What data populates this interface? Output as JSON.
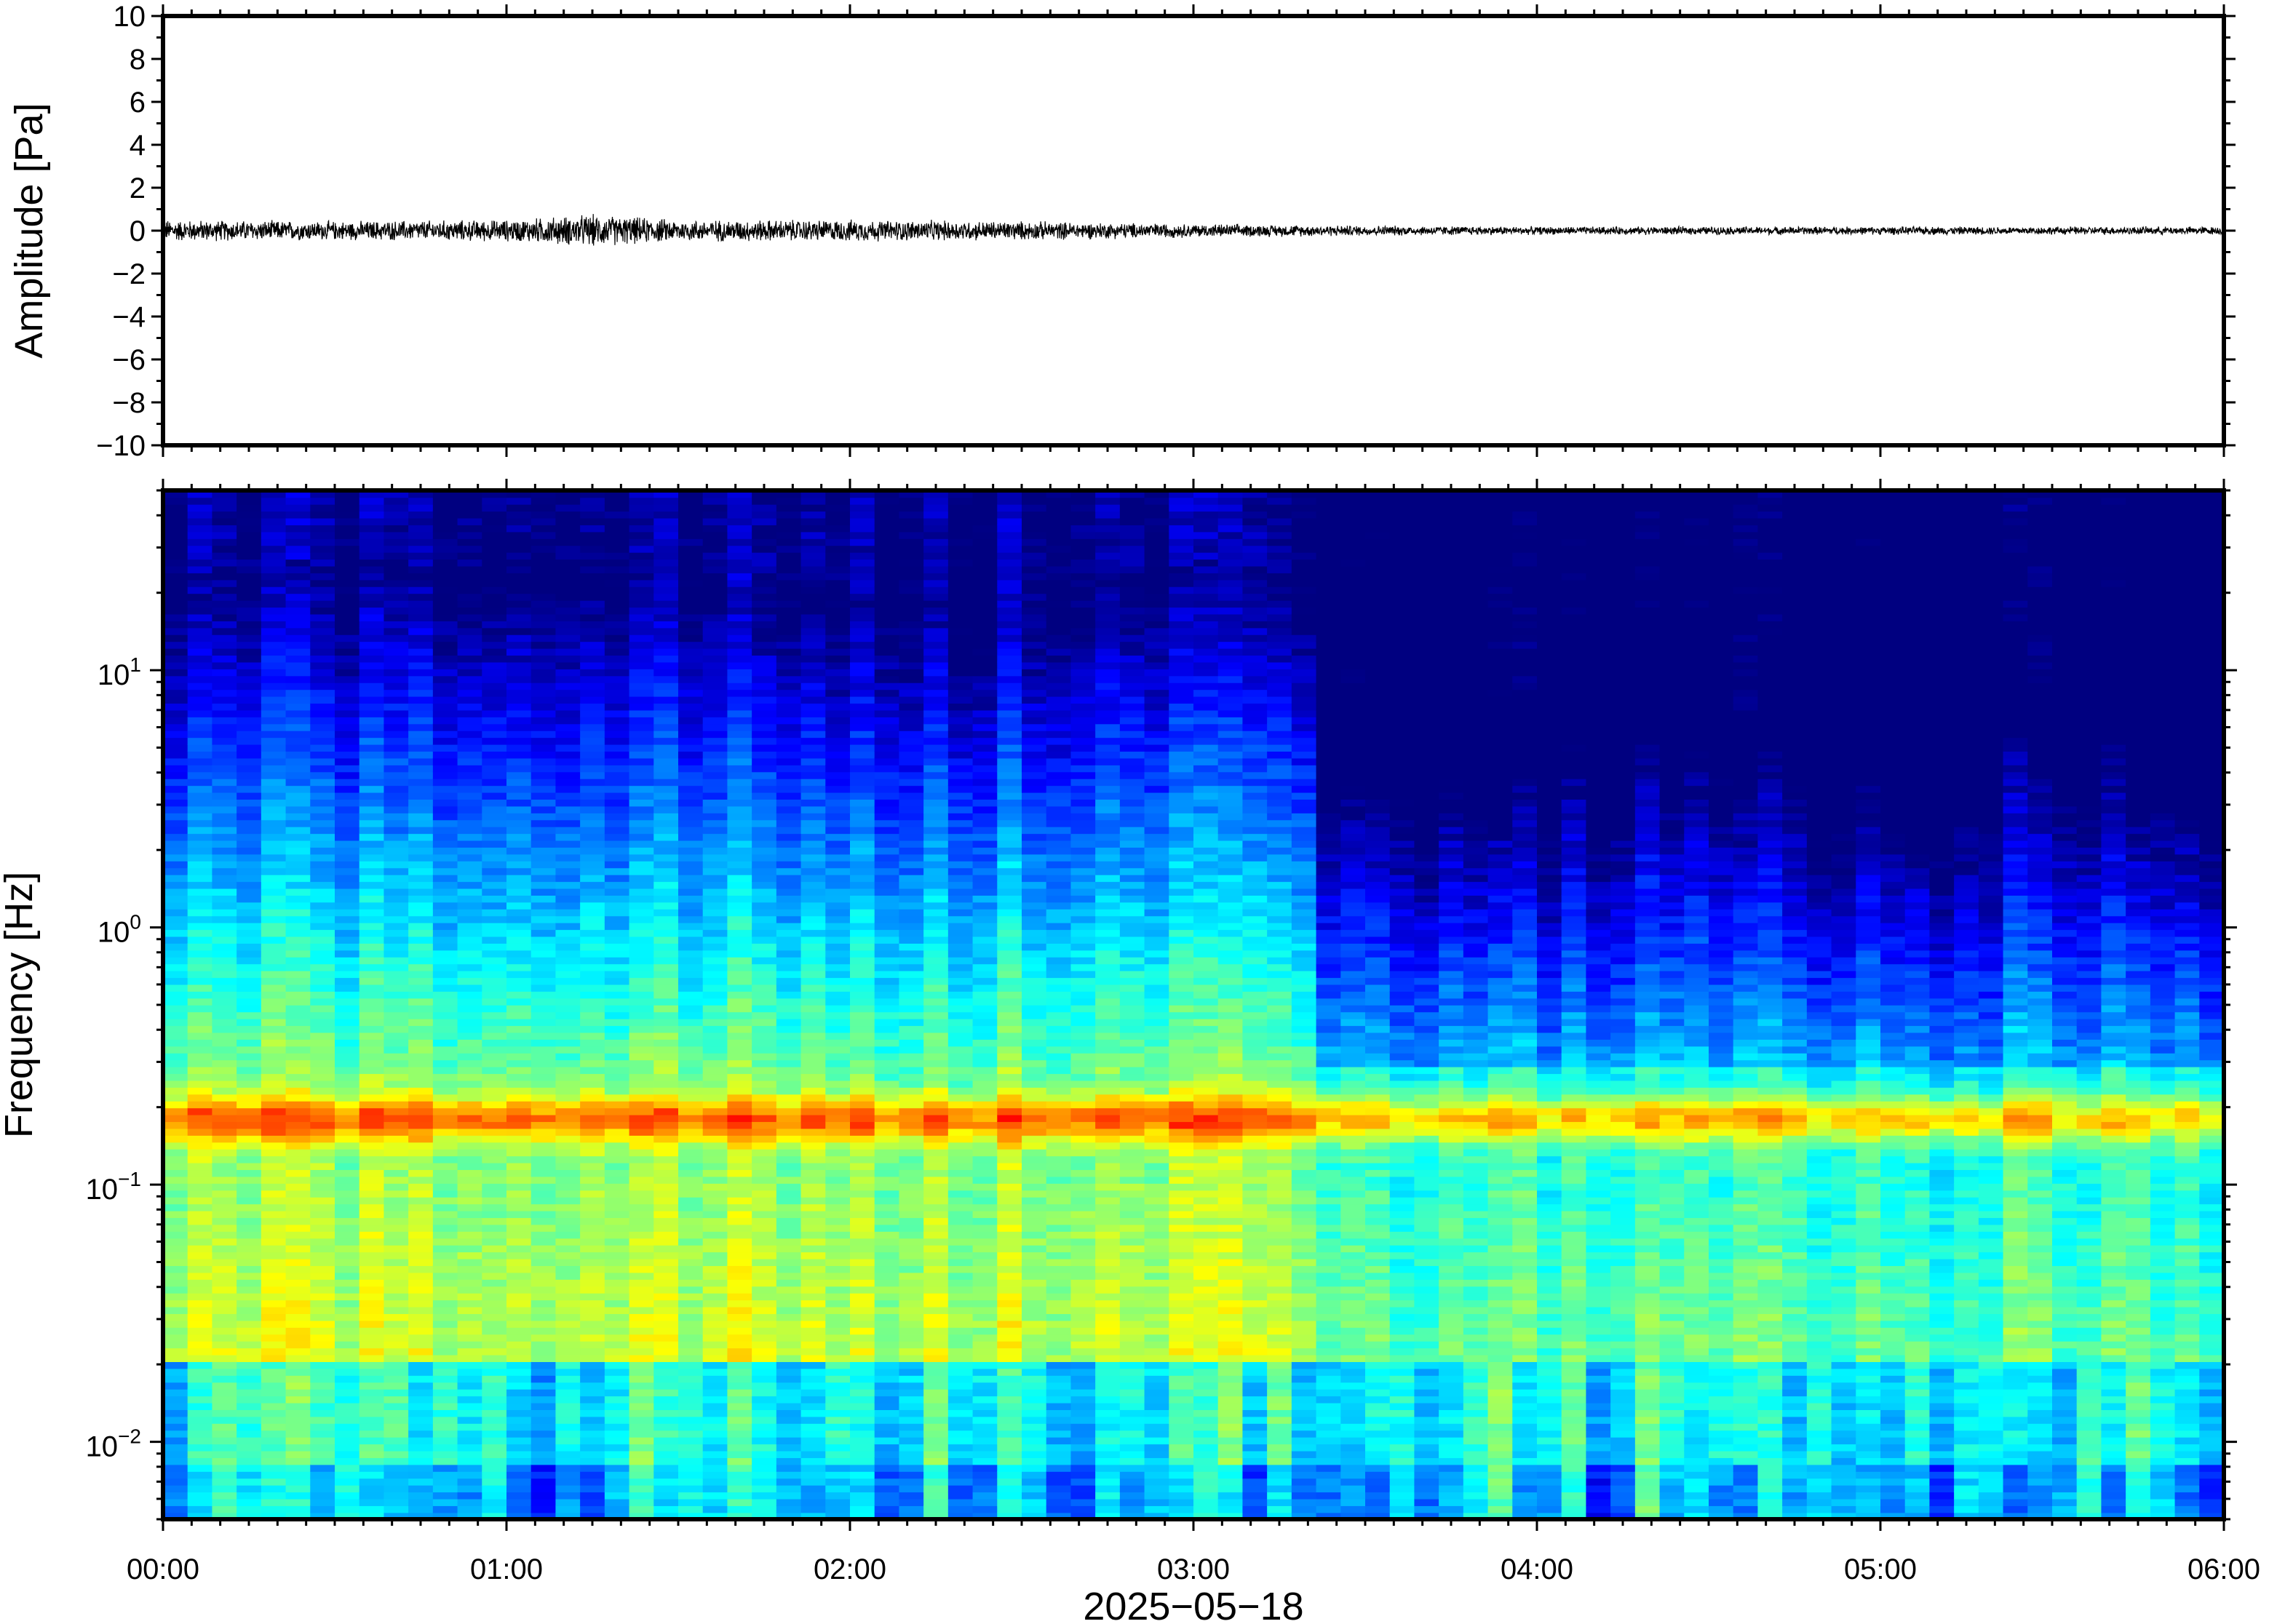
{
  "chart_data": [
    {
      "type": "line",
      "ylabel": "Amplitude [Pa]",
      "ylim": [
        -10,
        10
      ],
      "ytick_labels": [
        "10",
        "8",
        "6",
        "4",
        "2",
        "0",
        "−2",
        "−4",
        "−6",
        "−8",
        "−10"
      ],
      "ytick_values": [
        10,
        8,
        6,
        4,
        2,
        0,
        -2,
        -4,
        -6,
        -8,
        -10
      ],
      "xlim_hours": [
        0,
        6
      ],
      "series": [
        {
          "color": "#000000",
          "envelope_hours": [
            0.0,
            0.5,
            1.0,
            1.25,
            1.5,
            2.0,
            2.5,
            3.0,
            3.4,
            4.0,
            4.5,
            5.0,
            5.5,
            6.0
          ],
          "envelope_pa": [
            0.4,
            0.35,
            0.4,
            0.6,
            0.4,
            0.4,
            0.35,
            0.25,
            0.2,
            0.15,
            0.15,
            0.15,
            0.15,
            0.15
          ]
        }
      ]
    },
    {
      "type": "heatmap",
      "ylabel": "Frequency [Hz]",
      "yscale": "log",
      "ylim": [
        0.005,
        50
      ],
      "ytick_labels": [
        {
          "base": "10",
          "exp": "1",
          "value": 10
        },
        {
          "base": "10",
          "exp": "0",
          "value": 1
        },
        {
          "base": "10",
          "exp": "−1",
          "value": 0.1
        },
        {
          "base": "10",
          "exp": "−2",
          "value": 0.01
        }
      ],
      "colormap": "jet",
      "colors": {
        "low": "#000080",
        "mid": "#7fffa0",
        "high": "#ff8000"
      },
      "features": {
        "microseism_band_hz": [
          0.14,
          0.24
        ],
        "transition_hour": 3.37,
        "upper_cutoff_hz_before": 25,
        "upper_cutoff_hz_after": 6
      },
      "xlabel": "2025−05−18",
      "xtick_labels": [
        "00:00",
        "01:00",
        "02:00",
        "03:00",
        "04:00",
        "05:00",
        "06:00"
      ],
      "xtick_hours": [
        0,
        1,
        2,
        3,
        4,
        5,
        6
      ]
    }
  ]
}
